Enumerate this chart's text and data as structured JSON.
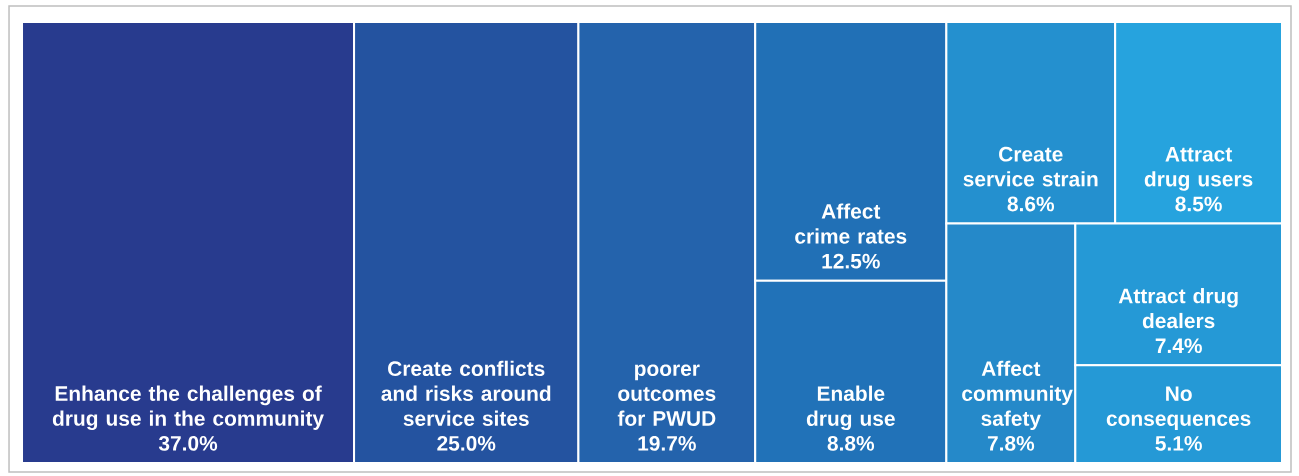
{
  "chart_data": {
    "type": "other",
    "categories": [
      "Enhance the challenges of drug use in the community",
      "Create conflicts and risks around service sites",
      "poorer outcomes for PWUD",
      "Affect crime rates",
      "Enable drug use",
      "Create service strain",
      "Attract drug users",
      "Affect community safety",
      "Attract drug dealers",
      "No consequences"
    ],
    "values": [
      37.0,
      25.0,
      19.7,
      12.5,
      8.8,
      8.6,
      8.5,
      7.8,
      7.4,
      5.1
    ],
    "value_labels": [
      "37.0%",
      "25.0%",
      "19.7%",
      "12.5%",
      "8.8%",
      "8.6%",
      "8.5%",
      "7.8%",
      "7.4%",
      "5.1%"
    ],
    "colors": [
      "#283b8e",
      "#2453a0",
      "#2463ac",
      "#2170b6",
      "#2172b8",
      "#2490cf",
      "#26a3de",
      "#2589c9",
      "#2599d6",
      "#2599d6"
    ]
  }
}
